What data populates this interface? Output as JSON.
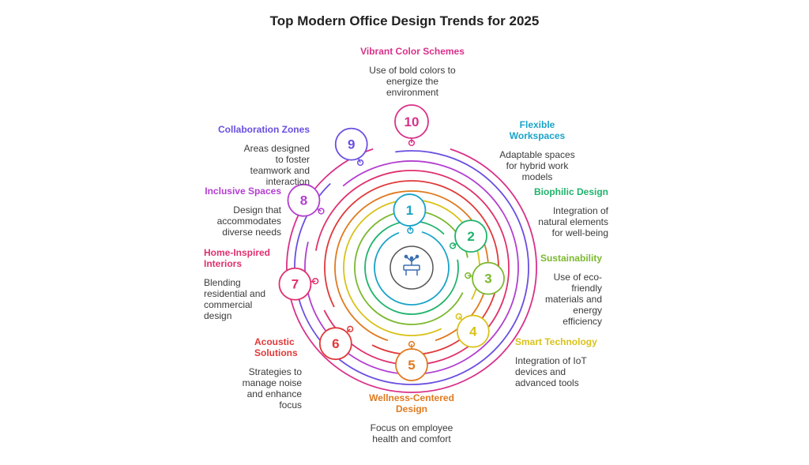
{
  "title": "Top Modern Office Design Trends for 2025",
  "center_icon": "office-desk-icon",
  "trends": [
    {
      "num": "1",
      "title": "Flexible Workspaces",
      "desc": "Adaptable spaces for hybrid work models",
      "color": "#1aa3c9"
    },
    {
      "num": "2",
      "title": "Biophilic Design",
      "desc": "Integration of natural elements for well-being",
      "color": "#1fb36b"
    },
    {
      "num": "3",
      "title": "Sustainability",
      "desc": "Use of eco-friendly materials and energy efficiency",
      "color": "#7cb82f"
    },
    {
      "num": "4",
      "title": "Smart Technology",
      "desc": "Integration of IoT devices and advanced tools",
      "color": "#d9c21a"
    },
    {
      "num": "5",
      "title": "Wellness-Centered Design",
      "desc": "Focus on employee health and comfort",
      "color": "#e07a1f"
    },
    {
      "num": "6",
      "title": "Acoustic Solutions",
      "desc": "Strategies to manage noise and enhance focus",
      "color": "#e0393a"
    },
    {
      "num": "7",
      "title": "Home-Inspired Interiors",
      "desc": "Blending residential and commercial design",
      "color": "#e0306e"
    },
    {
      "num": "8",
      "title": "Inclusive Spaces",
      "desc": "Design that accommodates diverse needs",
      "color": "#b23fd0"
    },
    {
      "num": "9",
      "title": "Collaboration Zones",
      "desc": "Areas designed to foster teamwork and interaction",
      "color": "#6a4fe0"
    },
    {
      "num": "10",
      "title": "Vibrant Color Schemes",
      "desc": "Use of bold colors to energize the environment",
      "color": "#d9318a"
    }
  ]
}
